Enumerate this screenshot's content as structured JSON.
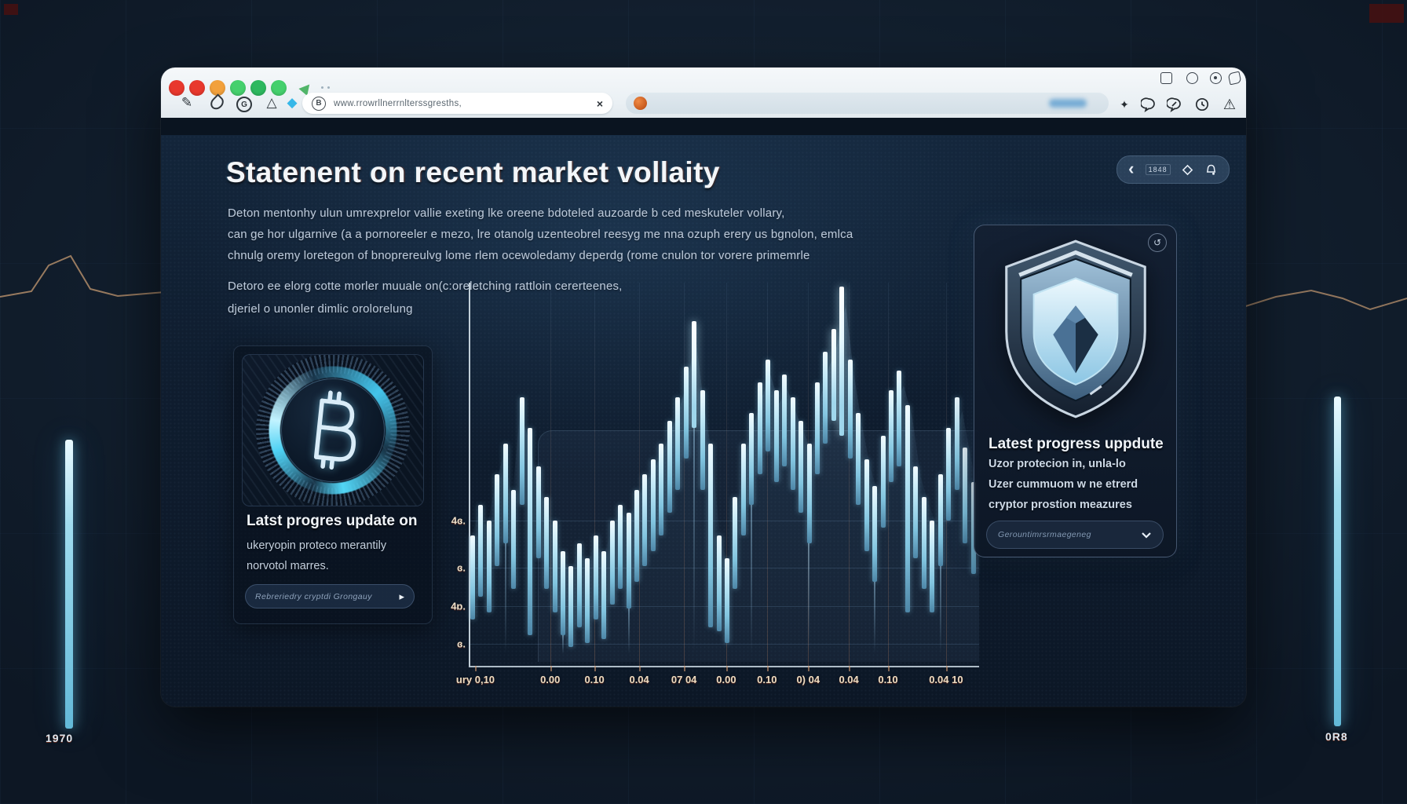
{
  "background": {
    "left_bar_label": "1970",
    "right_bar_label": "0R8"
  },
  "browser": {
    "traffic_lights": [
      "#e8382d",
      "#e8382d",
      "#f2a13c",
      "#45d06d",
      "#2db85f",
      "#45d06d"
    ],
    "toolbar_icons": [
      "edit-icon",
      "droplet-icon",
      "g-circle-icon",
      "triangle-icon",
      "diamond-icon"
    ],
    "mini_icons": [
      "window-icon",
      "circle-icon",
      "target-icon",
      "eye-icon"
    ],
    "right_icons": [
      "sparkle-icon",
      "chat-icon",
      "chat-edit-icon",
      "clock-icon",
      "warning-icon"
    ],
    "address": {
      "favicon": "bitcoin-circle-icon",
      "favicon_letter": "B",
      "url": "www.rrowrllnerrnlterssgresths,",
      "close_label": "×"
    },
    "sparkle_glyph": "✦",
    "warning_glyph": "⚠",
    "edit_glyph": "✎",
    "g_glyph": "G",
    "triangle_glyph": "△",
    "diamond_glyph": "◆"
  },
  "page": {
    "title": "Statenent on recent market vollaity",
    "header_pill": {
      "back_glyph": "‹",
      "badge": "1848",
      "icons": [
        "diamond-outline-icon",
        "bell-icon"
      ]
    },
    "intro": [
      "Deton mentonhy ulun umrexprelor vallie exeting lke oreene bdoteled auzoarde b ced meskuteler vollary,",
      "can ge hor ulgarnive (a a pornoreeler e mezo, lre otanolg uzenteobrel reesyg me nna ozuph erery us bgnolon, emlca",
      "chnulg oremy loretegon of bnoprereulvg lome rlem ocewoledamy deperdg (rome cnulon tor vorere primemrle"
    ],
    "intro2": [
      "Detoro ee elorg cotte morler muuale on(c:oreletching rattloin cererteenes,",
      "djeriel o unonler dimlic orolorelung"
    ],
    "left_card": {
      "emblem": "bitcoin-coin-icon",
      "title": "Latst progres update on",
      "body": [
        "ukeryopin proteco merantily",
        "norvotol marres."
      ],
      "button_label": "Rebreriedry cryptdi Grongauy",
      "button_arrow": "▸"
    },
    "right_card": {
      "corner_icon": "refresh-icon",
      "corner_glyph": "↺",
      "emblem": "shield-icon",
      "title": "Latest progress uppdute",
      "body": [
        "Uzor protecion in, unla-lo",
        "Uzer cummuom w ne etrerd",
        "cryptor prostion meazures"
      ],
      "dropdown_label": "Gerountimrsrmaegeneg"
    }
  },
  "chart_data": {
    "type": "bar",
    "title": "",
    "xlabel": "",
    "ylabel": "",
    "grid": true,
    "legend": "none",
    "y_tick_labels": [
      "4ɞ.",
      "ɞ.",
      "4ɒ.",
      "ɞ."
    ],
    "y_tick_pos": [
      62,
      74.4,
      84.4,
      94.3
    ],
    "x_tick_labels": [
      "ury 0,10",
      "0.00",
      "0.10",
      "0.04",
      "07 04",
      "0.00",
      "0.10",
      "0) 04",
      "0.04",
      "0.10",
      "0.04 10"
    ],
    "x_tick_pos": [
      1,
      15.7,
      24.4,
      33.2,
      42,
      50.3,
      58.3,
      66.4,
      74.4,
      82.1,
      93.5
    ],
    "ylim": [
      0,
      100
    ],
    "bars_high": [
      34,
      42,
      38,
      50,
      58,
      46,
      70,
      62,
      52,
      44,
      38,
      30,
      26,
      32,
      28,
      34,
      30,
      38,
      42,
      40,
      46,
      50,
      54,
      58,
      64,
      70,
      78,
      90,
      72,
      58,
      34,
      28,
      44,
      58,
      66,
      74,
      80,
      72,
      76,
      70,
      64,
      58,
      74,
      82,
      88,
      99,
      80,
      66,
      54,
      47,
      60,
      72,
      77,
      68,
      52,
      44,
      38,
      50,
      62,
      70,
      57,
      48
    ],
    "bars_low": [
      12,
      18,
      14,
      26,
      32,
      20,
      42,
      8,
      28,
      20,
      14,
      8,
      5,
      10,
      6,
      12,
      7,
      16,
      20,
      15,
      22,
      26,
      30,
      34,
      40,
      46,
      54,
      62,
      46,
      10,
      9,
      6,
      20,
      34,
      42,
      50,
      56,
      48,
      52,
      46,
      40,
      32,
      50,
      58,
      64,
      60,
      54,
      42,
      30,
      22,
      36,
      48,
      52,
      14,
      28,
      20,
      14,
      26,
      38,
      46,
      32,
      24
    ],
    "tail_indices": [
      4,
      11,
      19,
      27,
      34,
      41,
      49,
      57
    ],
    "bar_color": "#b9e4f6",
    "bright_color": "#eefaff"
  }
}
